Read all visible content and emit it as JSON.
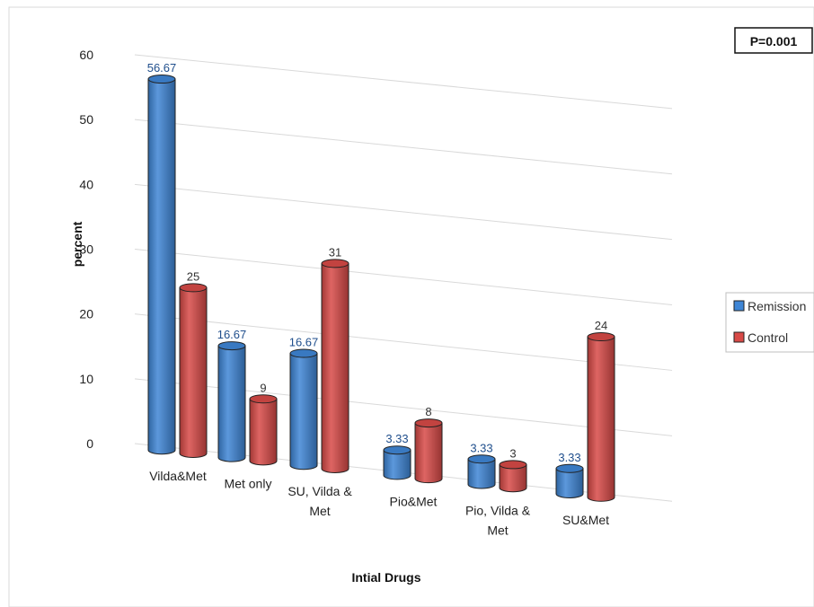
{
  "chart_data": {
    "type": "bar",
    "style": "3d-cylinder",
    "xlabel": "Intial Drugs",
    "ylabel": "percent",
    "ylim": [
      0,
      60
    ],
    "yticks": [
      0,
      10,
      20,
      30,
      40,
      50,
      60
    ],
    "grid": true,
    "legend_position": "right",
    "annotation": "P=0.001",
    "categories": [
      "Vilda&Met",
      "Met only",
      "SU, Vilda & Met",
      "Pio&Met",
      "Pio, Vilda & Met",
      "SU&Met"
    ],
    "category_lines": [
      [
        "Vilda&Met"
      ],
      [
        "Met only"
      ],
      [
        "SU, Vilda &",
        "Met"
      ],
      [
        "Pio&Met"
      ],
      [
        "Pio, Vilda &",
        "Met"
      ],
      [
        "SU&Met"
      ]
    ],
    "series": [
      {
        "name": "Remission",
        "color": "#3f86d6",
        "values": [
          56.67,
          16.67,
          16.67,
          3.33,
          3.33,
          3.33
        ],
        "labels": [
          "56.67",
          "16.67",
          "16.67",
          "3.33",
          "3.33",
          "3.33"
        ],
        "label_color": "#1f4e8c"
      },
      {
        "name": "Control",
        "color": "#d84a47",
        "values": [
          25,
          9,
          31,
          8,
          3,
          24
        ],
        "labels": [
          "25",
          "9",
          "31",
          "8",
          "3",
          "24"
        ],
        "label_color": "#333333"
      }
    ]
  }
}
